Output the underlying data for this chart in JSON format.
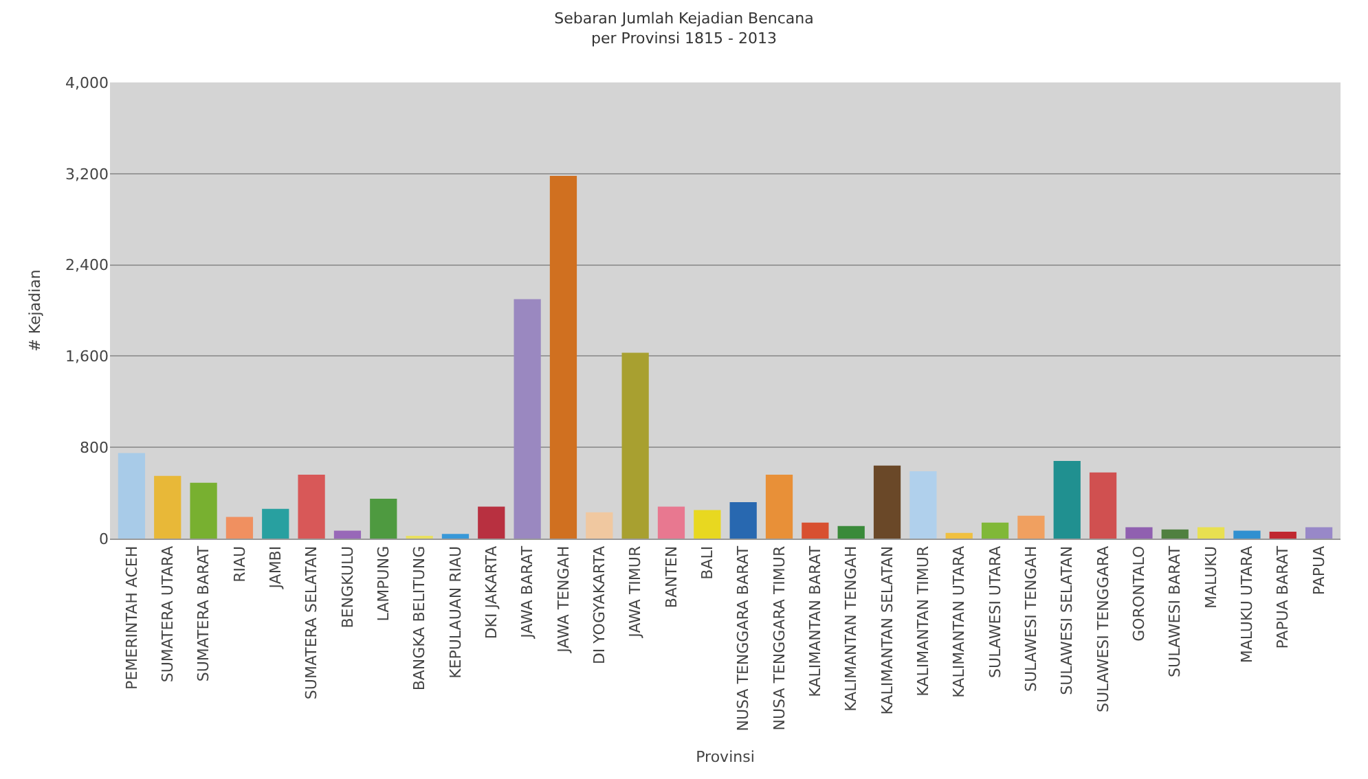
{
  "chart_data": {
    "type": "bar",
    "title": "Sebaran Jumlah Kejadian Bencana",
    "subtitle": "per Provinsi 1815 - 2013",
    "xlabel": "Provinsi",
    "ylabel": "# Kejadian",
    "categories": [
      "PEMERINTAH ACEH",
      "SUMATERA UTARA",
      "SUMATERA BARAT",
      "RIAU",
      "JAMBI",
      "SUMATERA SELATAN",
      "BENGKULU",
      "LAMPUNG",
      "BANGKA BELITUNG",
      "KEPULAUAN RIAU",
      "DKI JAKARTA",
      "JAWA BARAT",
      "JAWA TENGAH",
      "DI YOGYAKARTA",
      "JAWA TIMUR",
      "BANTEN",
      "BALI",
      "NUSA TENGGARA BARAT",
      "NUSA TENGGARA TIMUR",
      "KALIMANTAN BARAT",
      "KALIMANTAN TENGAH",
      "KALIMANTAN SELATAN",
      "KALIMANTAN TIMUR",
      "KALIMANTAN UTARA",
      "SULAWESI UTARA",
      "SULAWESI TENGAH",
      "SULAWESI SELATAN",
      "SULAWESI TENGGARA",
      "GORONTALO",
      "SULAWESI BARAT",
      "MALUKU",
      "MALUKU UTARA",
      "PAPUA BARAT",
      "PAPUA"
    ],
    "values": [
      750,
      550,
      490,
      190,
      260,
      560,
      70,
      350,
      20,
      40,
      280,
      2100,
      3180,
      230,
      1630,
      280,
      250,
      320,
      560,
      140,
      110,
      640,
      590,
      50,
      140,
      200,
      680,
      580,
      100,
      80,
      100,
      70,
      60,
      100
    ],
    "colors": [
      "#a8cbe8",
      "#e8b838",
      "#78b030",
      "#f09060",
      "#28a0a0",
      "#d85858",
      "#9868b8",
      "#4e9a40",
      "#e8e060",
      "#3898d8",
      "#b83040",
      "#9a88c0",
      "#d07020",
      "#f0c8a0",
      "#a8a030",
      "#e87890",
      "#e8d820",
      "#2868b0",
      "#e89038",
      "#d85030",
      "#3a8a3a",
      "#6a4828",
      "#b0d0ec",
      "#f0c040",
      "#80b838",
      "#f0a060",
      "#209090",
      "#d05050",
      "#9060b0",
      "#508040",
      "#e8e050",
      "#3090d0",
      "#c02830",
      "#9888c8"
    ],
    "ylim": [
      0,
      4000
    ],
    "yticks": [
      0,
      {
        "value": 800,
        "label": "800"
      },
      {
        "value": 1600,
        "label": "1,600"
      },
      {
        "value": 2400,
        "label": "2,400"
      },
      {
        "value": 3200,
        "label": "3,200"
      },
      {
        "value": 4000,
        "label": "4,000"
      }
    ],
    "grid": "y",
    "legend": false
  }
}
